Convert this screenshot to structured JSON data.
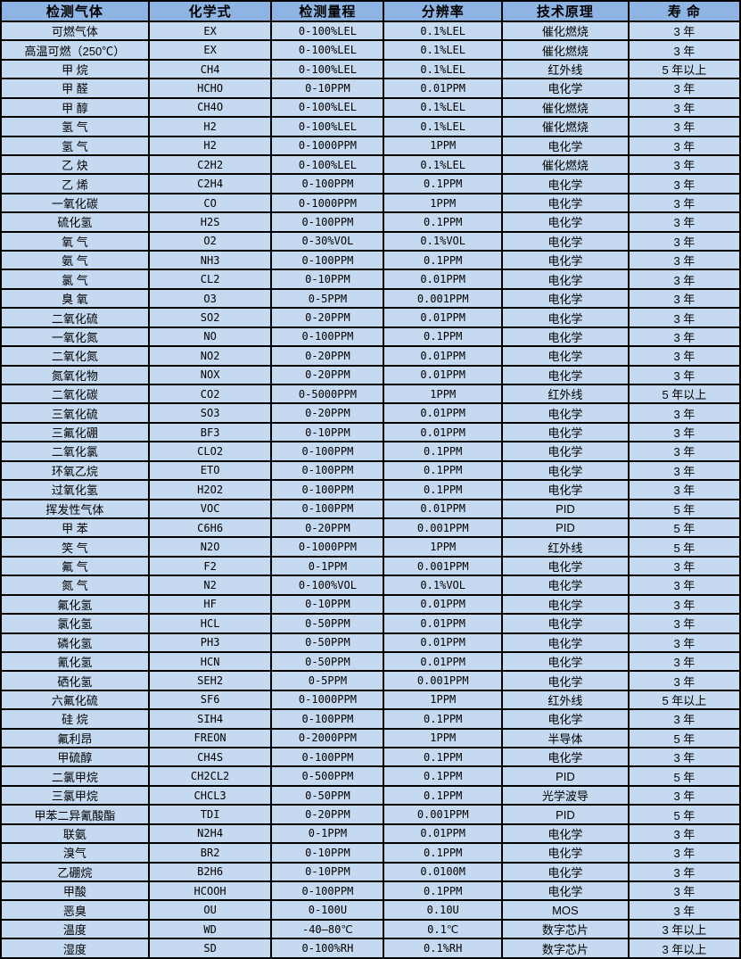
{
  "table": {
    "headers": [
      "检测气体",
      "化学式",
      "检测量程",
      "分辨率",
      "技术原理",
      "寿 命"
    ],
    "column_keys": [
      "gas-name",
      "formula",
      "range",
      "resolution",
      "principle",
      "lifespan"
    ],
    "colors": {
      "header_bg": "#8eb4e3",
      "row_bg": "#c5d9f1",
      "border": "#000000",
      "text": "#000000"
    },
    "rows": [
      [
        "可燃气体",
        "EX",
        "0-100%LEL",
        "0.1%LEL",
        "催化燃烧",
        "3 年"
      ],
      [
        "高温可燃（250℃）",
        "EX",
        "0-100%LEL",
        "0.1%LEL",
        "催化燃烧",
        "3 年"
      ],
      [
        "甲 烷",
        "CH4",
        "0-100%LEL",
        "0.1%LEL",
        "红外线",
        "5 年以上"
      ],
      [
        "甲 醛",
        "HCHO",
        "0-10PPM",
        "0.01PPM",
        "电化学",
        "3 年"
      ],
      [
        "甲 醇",
        "CH4O",
        "0-100%LEL",
        "0.1%LEL",
        "催化燃烧",
        "3 年"
      ],
      [
        "氢 气",
        "H2",
        "0-100%LEL",
        "0.1%LEL",
        "催化燃烧",
        "3 年"
      ],
      [
        "氢 气",
        "H2",
        "0-1000PPM",
        "1PPM",
        "电化学",
        "3 年"
      ],
      [
        "乙 炔",
        "C2H2",
        "0-100%LEL",
        "0.1%LEL",
        "催化燃烧",
        "3 年"
      ],
      [
        "乙 烯",
        "C2H4",
        "0-100PPM",
        "0.1PPM",
        "电化学",
        "3 年"
      ],
      [
        "一氧化碳",
        "CO",
        "0-1000PPM",
        "1PPM",
        "电化学",
        "3 年"
      ],
      [
        "硫化氢",
        "H2S",
        "0-100PPM",
        "0.1PPM",
        "电化学",
        "3 年"
      ],
      [
        "氧 气",
        "O2",
        "0-30%VOL",
        "0.1%VOL",
        "电化学",
        "3 年"
      ],
      [
        "氨 气",
        "NH3",
        "0-100PPM",
        "0.1PPM",
        "电化学",
        "3 年"
      ],
      [
        "氯 气",
        "CL2",
        "0-10PPM",
        "0.01PPM",
        "电化学",
        "3 年"
      ],
      [
        "臭 氧",
        "O3",
        "0-5PPM",
        "0.001PPM",
        "电化学",
        "3 年"
      ],
      [
        "二氧化硫",
        "SO2",
        "0-20PPM",
        "0.01PPM",
        "电化学",
        "3 年"
      ],
      [
        "一氧化氮",
        "NO",
        "0-100PPM",
        "0.1PPM",
        "电化学",
        "3 年"
      ],
      [
        "二氧化氮",
        "NO2",
        "0-20PPM",
        "0.01PPM",
        "电化学",
        "3 年"
      ],
      [
        "氮氧化物",
        "NOX",
        "0-20PPM",
        "0.01PPM",
        "电化学",
        "3 年"
      ],
      [
        "二氧化碳",
        "CO2",
        "0-5000PPM",
        "1PPM",
        "红外线",
        "5 年以上"
      ],
      [
        "三氧化硫",
        "SO3",
        "0-20PPM",
        "0.01PPM",
        "电化学",
        "3 年"
      ],
      [
        "三氟化硼",
        "BF3",
        "0-10PPM",
        "0.01PPM",
        "电化学",
        "3 年"
      ],
      [
        "二氧化氯",
        "CLO2",
        "0-100PPM",
        "0.1PPM",
        "电化学",
        "3 年"
      ],
      [
        "环氧乙烷",
        "ETO",
        "0-100PPM",
        "0.1PPM",
        "电化学",
        "3 年"
      ],
      [
        "过氧化氢",
        "H2O2",
        "0-100PPM",
        "0.1PPM",
        "电化学",
        "3 年"
      ],
      [
        "挥发性气体",
        "VOC",
        "0-100PPM",
        "0.01PPM",
        "PID",
        "5 年"
      ],
      [
        "甲 苯",
        "C6H6",
        "0-20PPM",
        "0.001PPM",
        "PID",
        "5 年"
      ],
      [
        "笑 气",
        "N2O",
        "0-1000PPM",
        "1PPM",
        "红外线",
        "5 年"
      ],
      [
        "氟 气",
        "F2",
        "0-1PPM",
        "0.001PPM",
        "电化学",
        "3 年"
      ],
      [
        "氮 气",
        "N2",
        "0-100%VOL",
        "0.1%VOL",
        "电化学",
        "3 年"
      ],
      [
        "氟化氢",
        "HF",
        "0-10PPM",
        "0.01PPM",
        "电化学",
        "3 年"
      ],
      [
        "氯化氢",
        "HCL",
        "0-50PPM",
        "0.01PPM",
        "电化学",
        "3 年"
      ],
      [
        "磷化氢",
        "PH3",
        "0-50PPM",
        "0.01PPM",
        "电化学",
        "3 年"
      ],
      [
        "氰化氢",
        "HCN",
        "0-50PPM",
        "0.01PPM",
        "电化学",
        "3 年"
      ],
      [
        "硒化氢",
        "SEH2",
        "0-5PPM",
        "0.001PPM",
        "电化学",
        "3 年"
      ],
      [
        "六氟化硫",
        "SF6",
        "0-1000PPM",
        "1PPM",
        "红外线",
        "5 年以上"
      ],
      [
        "硅 烷",
        "SIH4",
        "0-100PPM",
        "0.1PPM",
        "电化学",
        "3 年"
      ],
      [
        "氟利昂",
        "FREON",
        "0-2000PPM",
        "1PPM",
        "半导体",
        "5 年"
      ],
      [
        "甲硫醇",
        "CH4S",
        "0-100PPM",
        "0.1PPM",
        "电化学",
        "3 年"
      ],
      [
        "二氯甲烷",
        "CH2CL2",
        "0-500PPM",
        "0.1PPM",
        "PID",
        "5 年"
      ],
      [
        "三氯甲烷",
        "CHCL3",
        "0-50PPM",
        "0.1PPM",
        "光学波导",
        "3 年"
      ],
      [
        "甲苯二异氰酸酯",
        "TDI",
        "0-20PPM",
        "0.001PPM",
        "PID",
        "5 年"
      ],
      [
        "联氨",
        "N2H4",
        "0-1PPM",
        "0.01PPM",
        "电化学",
        "3 年"
      ],
      [
        "溴气",
        "BR2",
        "0-10PPM",
        "0.1PPM",
        "电化学",
        "3 年"
      ],
      [
        "乙硼烷",
        "B2H6",
        "0-10PPM",
        "0.0100M",
        "电化学",
        "3 年"
      ],
      [
        "甲酸",
        "HCOOH",
        "0-100PPM",
        "0.1PPM",
        "电化学",
        "3 年"
      ],
      [
        "恶臭",
        "OU",
        "0-100U",
        "0.10U",
        "MOS",
        "3 年"
      ],
      [
        "温度",
        "WD",
        "-40—80℃",
        "0.1℃",
        "数字芯片",
        "3 年以上"
      ],
      [
        "湿度",
        "SD",
        "0-100%RH",
        "0.1%RH",
        "数字芯片",
        "3 年以上"
      ]
    ]
  }
}
